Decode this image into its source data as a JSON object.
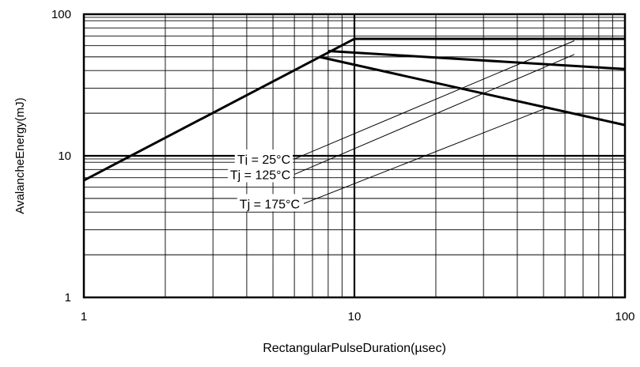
{
  "chart_data": {
    "type": "line",
    "xlabel": "RectangularPulseDuration(µsec)",
    "ylabel": "AvalancheEnergy(mJ)",
    "xscale": "log",
    "yscale": "log",
    "xlim": [
      1,
      100
    ],
    "ylim": [
      1,
      100
    ],
    "x_tick_labels": [
      "1",
      "10",
      "100"
    ],
    "y_tick_labels": [
      "1",
      "10",
      "100"
    ],
    "grid": true,
    "series": [
      {
        "name": "Tj = 25°C",
        "x": [
          1,
          10,
          100
        ],
        "y": [
          6.7,
          67,
          67
        ]
      },
      {
        "name": "Tj = 125°C",
        "x": [
          8,
          100
        ],
        "y": [
          55,
          41
        ]
      },
      {
        "name": "Tj = 175°C",
        "x": [
          7.4,
          100
        ],
        "y": [
          50,
          16.5
        ]
      }
    ],
    "annotations": [
      {
        "text": "Tj = 25°C",
        "x_start": 6.0,
        "y_start": 9.5,
        "x_end": 65,
        "y_end": 65
      },
      {
        "text": "Tj = 125°C",
        "x_start": 6.0,
        "y_start": 7.4,
        "x_end": 65,
        "y_end": 52
      },
      {
        "text": "Tj = 175°C",
        "x_start": 6.5,
        "y_start": 4.6,
        "x_end": 52,
        "y_end": 22
      }
    ]
  }
}
